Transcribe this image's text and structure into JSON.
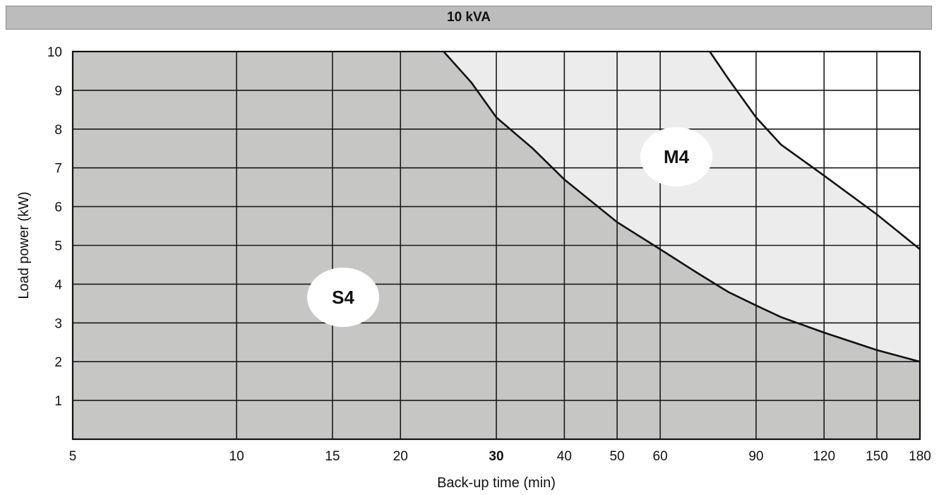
{
  "chart_data": {
    "type": "area",
    "title": "10 kVA",
    "xlabel": "Back-up time (min)",
    "ylabel": "Load power (kW)",
    "x_scale": "log",
    "x_ticks": [
      5,
      10,
      15,
      20,
      30,
      40,
      50,
      60,
      90,
      120,
      150,
      180
    ],
    "x_tick_labels": [
      "5",
      "10",
      "15",
      "20",
      "30",
      "40",
      "50",
      "60",
      "90",
      "120",
      "150",
      "180"
    ],
    "y_ticks": [
      1,
      2,
      3,
      4,
      5,
      6,
      7,
      8,
      9,
      10
    ],
    "y_tick_labels": [
      "1",
      "2",
      "3",
      "4",
      "5",
      "6",
      "7",
      "8",
      "9",
      "10"
    ],
    "xlim": [
      5,
      180
    ],
    "ylim": [
      0,
      10
    ],
    "grid": true,
    "x_gridlines": [
      10,
      15,
      20,
      30,
      40,
      50,
      60,
      90,
      120,
      150
    ],
    "series": [
      {
        "name": "S4",
        "color": "#c6c6c4",
        "x": [
          24,
          27,
          30,
          35,
          40,
          50,
          60,
          70,
          80,
          90,
          100,
          120,
          150,
          180
        ],
        "y": [
          10,
          9.2,
          8.3,
          7.5,
          6.7,
          5.6,
          4.9,
          4.3,
          3.8,
          3.45,
          3.15,
          2.75,
          2.3,
          2.0
        ]
      },
      {
        "name": "M4",
        "color": "#ececec",
        "x": [
          74,
          80,
          90,
          100,
          120,
          150,
          180
        ],
        "y": [
          10,
          9.3,
          8.3,
          7.6,
          6.8,
          5.8,
          4.9
        ]
      }
    ]
  },
  "colors": {
    "title_bar": "#bcbcbc",
    "grid": "#1a1a1a",
    "label_bubble": "#ffffff"
  }
}
